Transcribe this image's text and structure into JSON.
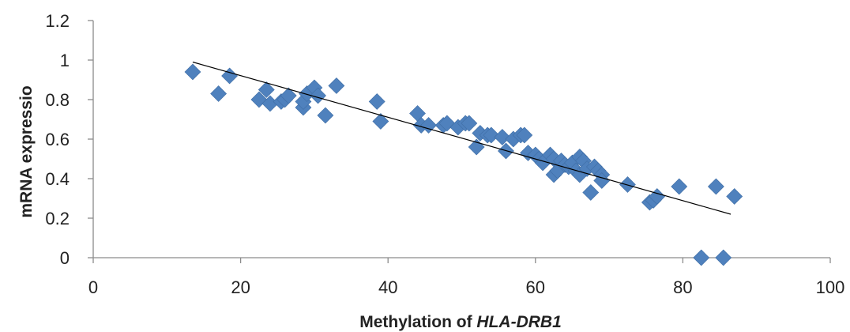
{
  "chart_data": {
    "type": "scatter",
    "title": "",
    "xlabel_prefix": "Methylation of ",
    "xlabel_italic": "HLA-DRB1",
    "ylabel": "mRNA expressio",
    "xlim": [
      0,
      100
    ],
    "ylim": [
      0,
      1.2
    ],
    "x_ticks": [
      "0",
      "20",
      "40",
      "60",
      "80",
      "100"
    ],
    "y_ticks": [
      "0",
      "0.2",
      "0.4",
      "0.6",
      "0.8",
      "1",
      "1.2"
    ],
    "grid": false,
    "legend": "none",
    "marker": "diamond",
    "marker_color": "#4f81bd",
    "trendline": {
      "type": "linear",
      "from": [
        13.5,
        0.99
      ],
      "to": [
        86.5,
        0.22
      ],
      "color": "#000000"
    },
    "points": [
      [
        13.5,
        0.94
      ],
      [
        17,
        0.83
      ],
      [
        18.5,
        0.92
      ],
      [
        22.5,
        0.8
      ],
      [
        23.5,
        0.85
      ],
      [
        24,
        0.78
      ],
      [
        25.5,
        0.79
      ],
      [
        26,
        0.8
      ],
      [
        26.5,
        0.82
      ],
      [
        28.5,
        0.76
      ],
      [
        28.5,
        0.79
      ],
      [
        29,
        0.83
      ],
      [
        30,
        0.86
      ],
      [
        30.5,
        0.82
      ],
      [
        31.5,
        0.72
      ],
      [
        33,
        0.87
      ],
      [
        38.5,
        0.79
      ],
      [
        39,
        0.69
      ],
      [
        44,
        0.73
      ],
      [
        44.5,
        0.67
      ],
      [
        45.5,
        0.67
      ],
      [
        47.5,
        0.67
      ],
      [
        48,
        0.68
      ],
      [
        49.5,
        0.66
      ],
      [
        50.5,
        0.68
      ],
      [
        51,
        0.68
      ],
      [
        52,
        0.56
      ],
      [
        52.5,
        0.63
      ],
      [
        53.5,
        0.62
      ],
      [
        54,
        0.62
      ],
      [
        55.5,
        0.61
      ],
      [
        56,
        0.54
      ],
      [
        57,
        0.6
      ],
      [
        58,
        0.62
      ],
      [
        58.5,
        0.62
      ],
      [
        59,
        0.53
      ],
      [
        60,
        0.52
      ],
      [
        60.5,
        0.5
      ],
      [
        61,
        0.48
      ],
      [
        62,
        0.52
      ],
      [
        62.5,
        0.5
      ],
      [
        62.5,
        0.42
      ],
      [
        63,
        0.44
      ],
      [
        63.5,
        0.49
      ],
      [
        64,
        0.47
      ],
      [
        64.5,
        0.46
      ],
      [
        65,
        0.48
      ],
      [
        65.5,
        0.44
      ],
      [
        66,
        0.51
      ],
      [
        66,
        0.42
      ],
      [
        66.5,
        0.49
      ],
      [
        67,
        0.45
      ],
      [
        67.5,
        0.33
      ],
      [
        68,
        0.46
      ],
      [
        68.5,
        0.44
      ],
      [
        69,
        0.42
      ],
      [
        69,
        0.39
      ],
      [
        72.5,
        0.37
      ],
      [
        75.5,
        0.28
      ],
      [
        76,
        0.29
      ],
      [
        76.5,
        0.31
      ],
      [
        79.5,
        0.36
      ],
      [
        82.5,
        0.0
      ],
      [
        84.5,
        0.36
      ],
      [
        85.5,
        0.0
      ],
      [
        87,
        0.31
      ]
    ]
  }
}
